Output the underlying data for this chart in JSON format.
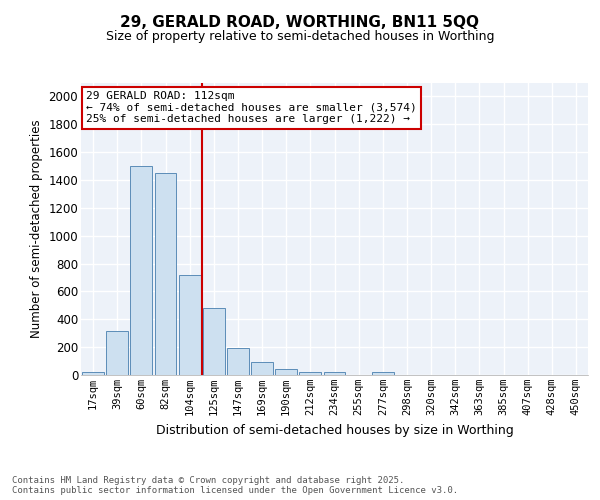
{
  "title1": "29, GERALD ROAD, WORTHING, BN11 5QQ",
  "title2": "Size of property relative to semi-detached houses in Worthing",
  "xlabel": "Distribution of semi-detached houses by size in Worthing",
  "ylabel": "Number of semi-detached properties",
  "categories": [
    "17sqm",
    "39sqm",
    "60sqm",
    "82sqm",
    "104sqm",
    "125sqm",
    "147sqm",
    "169sqm",
    "190sqm",
    "212sqm",
    "234sqm",
    "255sqm",
    "277sqm",
    "298sqm",
    "320sqm",
    "342sqm",
    "363sqm",
    "385sqm",
    "407sqm",
    "428sqm",
    "450sqm"
  ],
  "values": [
    20,
    315,
    1500,
    1450,
    720,
    480,
    195,
    90,
    45,
    25,
    20,
    0,
    20,
    0,
    0,
    0,
    0,
    0,
    0,
    0,
    0
  ],
  "bar_color": "#cde0f0",
  "bar_edge_color": "#5b8db8",
  "vline_color": "#cc0000",
  "annotation_text": "29 GERALD ROAD: 112sqm\n← 74% of semi-detached houses are smaller (3,574)\n25% of semi-detached houses are larger (1,222) →",
  "annotation_box_color": "#ffffff",
  "annotation_box_edge": "#cc0000",
  "ylim": [
    0,
    2100
  ],
  "yticks": [
    0,
    200,
    400,
    600,
    800,
    1000,
    1200,
    1400,
    1600,
    1800,
    2000
  ],
  "footer": "Contains HM Land Registry data © Crown copyright and database right 2025.\nContains public sector information licensed under the Open Government Licence v3.0.",
  "bg_color": "#ffffff",
  "plot_bg_color": "#edf2f9"
}
